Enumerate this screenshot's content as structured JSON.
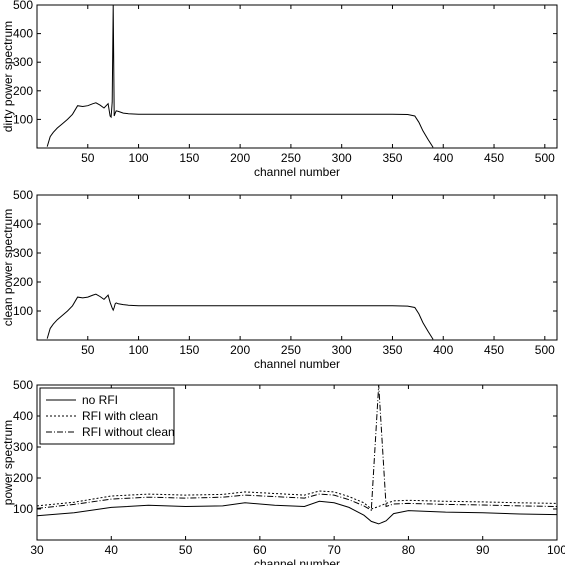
{
  "chart_data": [
    {
      "type": "line",
      "xlabel": "channel number",
      "ylabel": "dirty power spectrum",
      "xlim": [
        0,
        512
      ],
      "ylim": [
        0,
        500
      ],
      "xticks": [
        50,
        100,
        150,
        200,
        250,
        300,
        350,
        400,
        450,
        500
      ],
      "yticks": [
        100,
        200,
        300,
        400,
        500
      ],
      "grid": false,
      "series": [
        {
          "x": [
            10,
            13,
            16,
            20,
            25,
            30,
            35,
            40,
            45,
            50,
            55,
            58,
            62,
            66,
            70,
            72,
            73,
            74,
            75,
            76,
            77,
            78,
            80,
            85,
            90,
            100,
            150,
            200,
            250,
            300,
            350,
            365,
            372,
            376,
            380,
            385,
            390
          ],
          "y": [
            5,
            40,
            55,
            70,
            85,
            100,
            118,
            148,
            145,
            148,
            155,
            158,
            150,
            140,
            155,
            112,
            108,
            160,
            500,
            112,
            122,
            130,
            128,
            122,
            120,
            118,
            118,
            118,
            118,
            118,
            118,
            117,
            112,
            90,
            60,
            30,
            2
          ]
        }
      ]
    },
    {
      "type": "line",
      "xlabel": "channel number",
      "ylabel": "clean power spectrum",
      "xlim": [
        0,
        512
      ],
      "ylim": [
        0,
        500
      ],
      "xticks": [
        50,
        100,
        150,
        200,
        250,
        300,
        350,
        400,
        450,
        500
      ],
      "yticks": [
        100,
        200,
        300,
        400,
        500
      ],
      "grid": false,
      "series": [
        {
          "x": [
            10,
            13,
            16,
            20,
            25,
            30,
            35,
            40,
            45,
            50,
            55,
            58,
            62,
            66,
            70,
            72,
            74,
            75,
            76,
            77,
            78,
            80,
            85,
            90,
            100,
            150,
            200,
            250,
            300,
            350,
            365,
            372,
            376,
            380,
            385,
            390
          ],
          "y": [
            5,
            40,
            55,
            70,
            85,
            100,
            118,
            148,
            145,
            148,
            155,
            158,
            150,
            140,
            155,
            130,
            110,
            103,
            112,
            125,
            128,
            125,
            122,
            120,
            118,
            118,
            118,
            118,
            118,
            118,
            117,
            112,
            90,
            60,
            30,
            2
          ]
        }
      ]
    },
    {
      "type": "line",
      "xlabel": "channel number",
      "ylabel": "power spectrum",
      "xlim": [
        30,
        100
      ],
      "ylim": [
        0,
        500
      ],
      "xticks": [
        30,
        40,
        50,
        60,
        70,
        80,
        90,
        100
      ],
      "yticks": [
        100,
        200,
        300,
        400,
        500
      ],
      "grid": false,
      "legend": "top-left",
      "series": [
        {
          "name": "no RFI",
          "style": "solid",
          "x": [
            30,
            35,
            40,
            45,
            50,
            55,
            58,
            62,
            66,
            68,
            70,
            72,
            74,
            75,
            76,
            77,
            78,
            80,
            85,
            90,
            95,
            100
          ],
          "y": [
            78,
            88,
            105,
            112,
            108,
            110,
            120,
            112,
            108,
            125,
            120,
            105,
            80,
            60,
            52,
            62,
            85,
            95,
            90,
            88,
            84,
            82
          ]
        },
        {
          "name": "RFI with clean",
          "style": "dotted",
          "x": [
            30,
            35,
            40,
            45,
            50,
            55,
            58,
            62,
            66,
            68,
            70,
            72,
            74,
            75,
            76,
            77,
            78,
            80,
            85,
            90,
            95,
            100
          ],
          "y": [
            110,
            122,
            142,
            148,
            145,
            147,
            155,
            150,
            145,
            158,
            155,
            140,
            120,
            100,
            108,
            118,
            126,
            128,
            125,
            123,
            120,
            118
          ]
        },
        {
          "name": "RFI without clean",
          "style": "dashdot",
          "x": [
            30,
            35,
            40,
            45,
            50,
            55,
            58,
            62,
            66,
            68,
            70,
            72,
            74,
            75,
            76,
            77,
            78,
            80,
            85,
            90,
            95,
            100
          ],
          "y": [
            102,
            115,
            132,
            138,
            135,
            138,
            145,
            140,
            135,
            148,
            145,
            130,
            110,
            96,
            500,
            108,
            116,
            118,
            115,
            113,
            110,
            108
          ]
        }
      ]
    }
  ]
}
